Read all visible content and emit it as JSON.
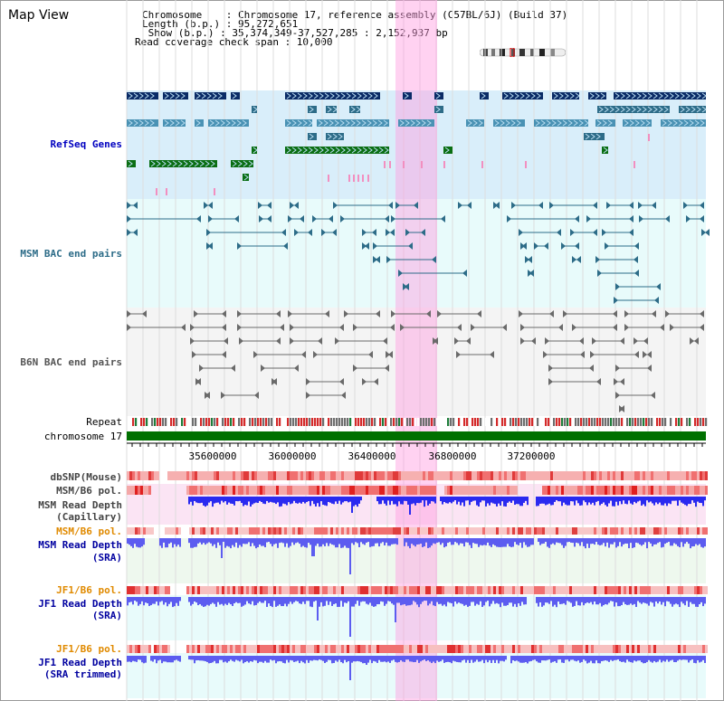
{
  "header": {
    "title": "Map View",
    "info_lines": [
      "Chromosome    : Chromosome 17, reference assembly (C57BL/6J) (Build 37)",
      "Length (b.p.) : 95,272,651",
      " Show (b.p.) : 35,374,349-37,527,285 : 2,152,937 bp",
      "Read coverage check span : 10,000"
    ]
  },
  "tracks": {
    "refseq": "RefSeq Genes",
    "msm_bac": "MSM BAC end pairs",
    "b6n_bac": "B6N BAC end pairs",
    "repeat": "Repeat",
    "chromosome": "chromosome 17",
    "dbsnp": "dbSNP(Mouse)",
    "msm_b6_pol_1": "MSM/B6 pol.",
    "msm_depth_cap_1": "MSM Read Depth",
    "msm_depth_cap_2": "(Capillary)",
    "msm_b6_pol_2": "MSM/B6 pol.",
    "msm_depth_sra_1": "MSM Read Depth",
    "msm_depth_sra_2": "(SRA)",
    "jf1_b6_pol_1": "JF1/B6 pol.",
    "jf1_depth_sra_1": "JF1 Read Depth",
    "jf1_depth_sra_2": "(SRA)",
    "jf1_b6_pol_2": "JF1/B6 pol.",
    "jf1_depth_trim_1": "JF1 Read Depth",
    "jf1_depth_trim_2": "(SRA trimmed)"
  },
  "axis": {
    "ticks": [
      "35600000",
      "36000000",
      "36400000",
      "36800000",
      "37200000"
    ]
  },
  "colors": {
    "refseq_bg": "#d9eefa",
    "bac_bg": "#e8fbfb",
    "highlight": "#ff9be0",
    "chromosome_bar": "#007000",
    "depth_blue": "#3a3ae8",
    "pol_red": "#e8383a"
  }
}
